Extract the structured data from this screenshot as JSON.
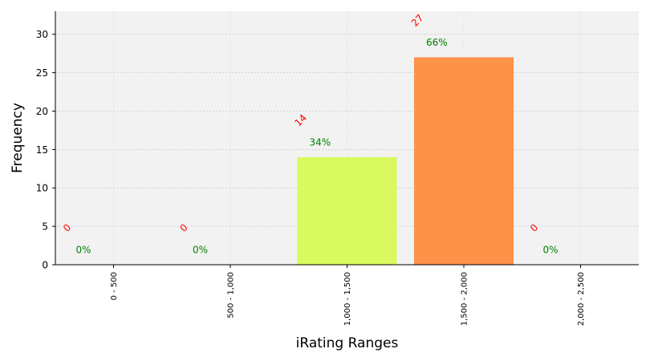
{
  "chart_data": {
    "type": "bar",
    "xlabel": "iRating Ranges",
    "ylabel": "Frequency",
    "categories": [
      "0 - 500",
      "500 - 1,000",
      "1,000 - 1,500",
      "1,500 - 2,000",
      "2,000 - 2,500"
    ],
    "values": [
      0,
      0,
      14,
      27,
      0
    ],
    "count_labels": [
      "0",
      "0",
      "14",
      "27",
      "0"
    ],
    "percent_labels": [
      "0%",
      "0%",
      "34%",
      "66%",
      "0%"
    ],
    "bar_colors": [
      "#d9f95f",
      "#d9f95f",
      "#d9f95f",
      "#fd9249",
      "#d9f95f"
    ],
    "ylim": [
      0,
      33
    ],
    "yticks": [
      0,
      5,
      10,
      15,
      20,
      25,
      30
    ],
    "grid": true,
    "background_color": "#f2f2f2",
    "count_label_color": "#ff0000",
    "percent_label_color": "#008000"
  }
}
